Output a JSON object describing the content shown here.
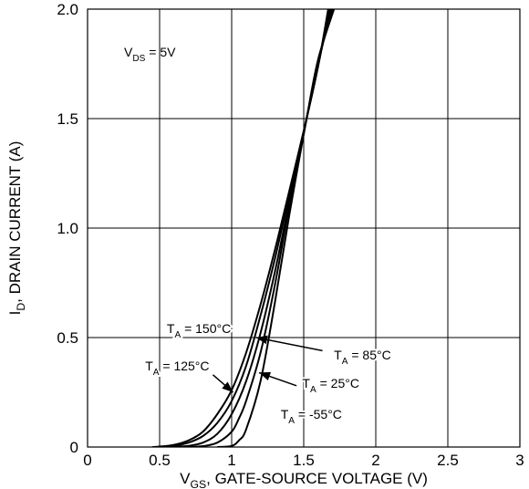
{
  "chart_data": {
    "type": "line",
    "xlabel": {
      "main": "V",
      "sub": "GS",
      "rest": ", GATE-SOURCE VOLTAGE (V)"
    },
    "ylabel": {
      "main": "I",
      "sub": "D",
      "rest": ", DRAIN CURRENT (A)"
    },
    "xlim": [
      0,
      3
    ],
    "ylim": [
      0,
      2
    ],
    "xticks": [
      {
        "value": 0,
        "label": "0"
      },
      {
        "value": 0.5,
        "label": "0.5"
      },
      {
        "value": 1,
        "label": "1"
      },
      {
        "value": 1.5,
        "label": "1.5"
      },
      {
        "value": 2,
        "label": "2"
      },
      {
        "value": 2.5,
        "label": "2.5"
      },
      {
        "value": 3,
        "label": "3"
      }
    ],
    "yticks": [
      {
        "value": 0,
        "label": "0"
      },
      {
        "value": 0.5,
        "label": "0.5"
      },
      {
        "value": 1,
        "label": "1.0"
      },
      {
        "value": 1.5,
        "label": "1.5"
      },
      {
        "value": 2,
        "label": "2.0"
      }
    ],
    "grid": true,
    "condition": {
      "main": "V",
      "sub": "DS",
      "rest": " = 5V"
    },
    "series": [
      {
        "name": "T_A = 150°C",
        "x": [
          0.45,
          0.5,
          0.6,
          0.7,
          0.8,
          0.9,
          1.0,
          1.1,
          1.2,
          1.3,
          1.4,
          1.52,
          1.6,
          1.67
        ],
        "y": [
          0,
          0.002,
          0.01,
          0.03,
          0.07,
          0.15,
          0.26,
          0.43,
          0.65,
          0.9,
          1.17,
          1.5,
          1.74,
          2.0
        ]
      },
      {
        "name": "T_A = 125°C",
        "x": [
          0.5,
          0.6,
          0.7,
          0.8,
          0.9,
          1.0,
          1.1,
          1.2,
          1.3,
          1.4,
          1.52,
          1.6,
          1.68
        ],
        "y": [
          0,
          0.005,
          0.02,
          0.05,
          0.11,
          0.21,
          0.37,
          0.6,
          0.86,
          1.15,
          1.5,
          1.74,
          2.0
        ]
      },
      {
        "name": "T_A = 85°C",
        "x": [
          0.6,
          0.7,
          0.8,
          0.9,
          1.0,
          1.1,
          1.2,
          1.3,
          1.4,
          1.52,
          1.6,
          1.69
        ],
        "y": [
          0,
          0.005,
          0.02,
          0.06,
          0.15,
          0.3,
          0.52,
          0.8,
          1.12,
          1.5,
          1.75,
          2.0
        ]
      },
      {
        "name": "T_A = 25°C",
        "x": [
          0.7,
          0.8,
          0.9,
          1.0,
          1.05,
          1.1,
          1.2,
          1.3,
          1.4,
          1.52,
          1.6,
          1.7
        ],
        "y": [
          0,
          0.004,
          0.02,
          0.07,
          0.13,
          0.21,
          0.43,
          0.74,
          1.1,
          1.5,
          1.76,
          2.0
        ]
      },
      {
        "name": "T_A = -55°C",
        "x": [
          0.9,
          1.0,
          1.05,
          1.1,
          1.2,
          1.3,
          1.4,
          1.52,
          1.6,
          1.71
        ],
        "y": [
          0,
          0.005,
          0.03,
          0.08,
          0.3,
          0.66,
          1.06,
          1.5,
          1.77,
          2.0
        ]
      }
    ],
    "annotations": [
      {
        "label": {
          "main": "T",
          "sub": "A",
          "rest": " = 150°C"
        },
        "tx": 0.55,
        "ty": 0.52,
        "anchor": "start",
        "arrow": null
      },
      {
        "label": {
          "main": "T",
          "sub": "A",
          "rest": " = 125°C"
        },
        "tx": 0.4,
        "ty": 0.35,
        "anchor": "start",
        "arrow": {
          "from": [
            0.87,
            0.33
          ],
          "to": [
            1.01,
            0.25
          ]
        }
      },
      {
        "label": {
          "main": "T",
          "sub": "A",
          "rest": " = 85°C"
        },
        "tx": 1.71,
        "ty": 0.4,
        "anchor": "start",
        "arrow": {
          "from": [
            1.63,
            0.44
          ],
          "to": [
            1.17,
            0.5
          ]
        }
      },
      {
        "label": {
          "main": "T",
          "sub": "A",
          "rest": " = 25°C"
        },
        "tx": 1.49,
        "ty": 0.27,
        "anchor": "start",
        "arrow": {
          "from": [
            1.45,
            0.28
          ],
          "to": [
            1.19,
            0.34
          ]
        }
      },
      {
        "label": {
          "main": "T",
          "sub": "A",
          "rest": " = -55°C"
        },
        "tx": 1.34,
        "ty": 0.13,
        "anchor": "start",
        "arrow": null
      }
    ]
  }
}
